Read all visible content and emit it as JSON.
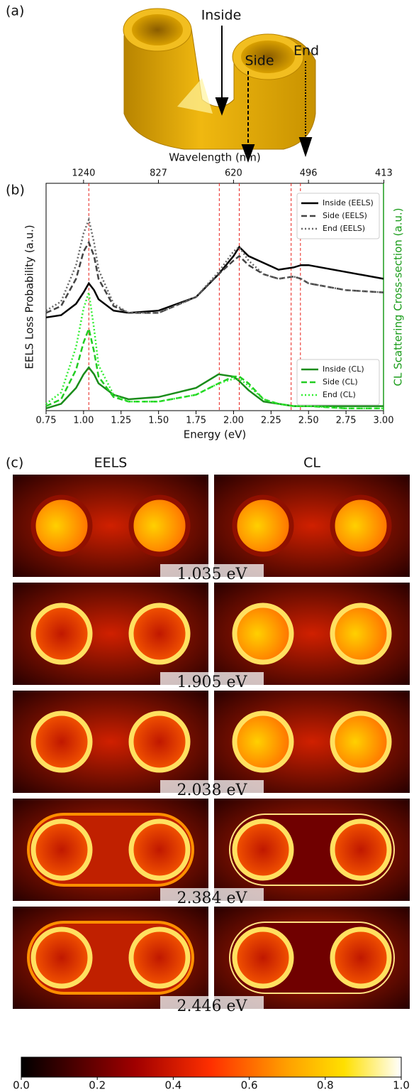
{
  "figure_a": {
    "label": "(a)",
    "annotations": [
      "Inside",
      "Side",
      "End"
    ]
  },
  "chart_data": {
    "type": "line",
    "label": "(b)",
    "xlabel": "Energy (eV)",
    "x2label": "Wavelength (nm)",
    "ylabel": "EELS Loss Probability (a.u.)",
    "y2label": "CL Scattering Cross-section (a.u.)",
    "y2color": "#1a9c1a",
    "x": [
      0.75,
      0.85,
      0.95,
      1.0,
      1.035,
      1.07,
      1.1,
      1.2,
      1.3,
      1.5,
      1.75,
      1.9,
      2.0,
      2.038,
      2.1,
      2.2,
      2.3,
      2.4,
      2.45,
      2.5,
      2.75,
      3.0
    ],
    "xlim": [
      0.75,
      3.0
    ],
    "xticks": [
      0.75,
      {
        "value": 1,
        "label": "1.00"
      },
      1.25,
      {
        "value": 1.5,
        "label": "1.50"
      },
      1.75,
      {
        "value": 2,
        "label": "2.00"
      },
      2.25,
      {
        "value": 2.5,
        "label": "2.50"
      },
      2.75,
      {
        "value": 3,
        "label": "3.00"
      }
    ],
    "x2ticks": [
      1240,
      827,
      620,
      496,
      413
    ],
    "ylim": [
      0,
      1
    ],
    "vlines": [
      1.035,
      1.905,
      2.038,
      2.384,
      2.446
    ],
    "vline_color": "#e8201a",
    "series": [
      {
        "name": "Inside (EELS)",
        "color": "#000000",
        "dash": "solid",
        "legend": "upper right",
        "values": [
          0.41,
          0.42,
          0.47,
          0.52,
          0.56,
          0.53,
          0.49,
          0.44,
          0.43,
          0.44,
          0.5,
          0.6,
          0.68,
          0.72,
          0.68,
          0.65,
          0.62,
          0.63,
          0.64,
          0.64,
          0.61,
          0.58
        ]
      },
      {
        "name": "Side (EELS)",
        "color": "#444444",
        "dash": "dashed",
        "legend": "upper right",
        "values": [
          0.43,
          0.46,
          0.58,
          0.7,
          0.74,
          0.68,
          0.58,
          0.46,
          0.43,
          0.43,
          0.5,
          0.6,
          0.66,
          0.68,
          0.64,
          0.6,
          0.58,
          0.59,
          0.58,
          0.56,
          0.53,
          0.52
        ]
      },
      {
        "name": "End (EELS)",
        "color": "#666666",
        "dash": "dotted",
        "legend": "upper right",
        "values": [
          0.44,
          0.48,
          0.64,
          0.78,
          0.84,
          0.74,
          0.62,
          0.47,
          0.43,
          0.43,
          0.5,
          0.61,
          0.7,
          0.72,
          0.66,
          0.6,
          0.58,
          0.59,
          0.58,
          0.56,
          0.53,
          0.52
        ]
      },
      {
        "name": "Inside (CL)",
        "color": "#1a8c1a",
        "dash": "solid",
        "legend": "lower right",
        "values": [
          0.01,
          0.03,
          0.1,
          0.16,
          0.19,
          0.16,
          0.12,
          0.07,
          0.05,
          0.06,
          0.1,
          0.16,
          0.15,
          0.13,
          0.09,
          0.04,
          0.03,
          0.02,
          0.02,
          0.02,
          0.02,
          0.02
        ]
      },
      {
        "name": "Side (CL)",
        "color": "#22cc22",
        "dash": "dashed",
        "legend": "lower right",
        "values": [
          0.02,
          0.05,
          0.18,
          0.3,
          0.36,
          0.26,
          0.15,
          0.06,
          0.04,
          0.04,
          0.07,
          0.12,
          0.15,
          0.15,
          0.12,
          0.05,
          0.03,
          0.02,
          0.02,
          0.02,
          0.01,
          0.01
        ]
      },
      {
        "name": "End (CL)",
        "color": "#33ee33",
        "dash": "dotted",
        "legend": "lower right",
        "values": [
          0.03,
          0.08,
          0.28,
          0.45,
          0.52,
          0.36,
          0.2,
          0.07,
          0.04,
          0.04,
          0.07,
          0.12,
          0.14,
          0.14,
          0.11,
          0.05,
          0.03,
          0.02,
          0.02,
          0.02,
          0.01,
          0.01
        ]
      }
    ]
  },
  "figure_c": {
    "label": "(c)",
    "columns": [
      "EELS",
      "CL"
    ],
    "energies": [
      "1.035 eV",
      "1.905 eV",
      "2.038 eV",
      "2.384 eV",
      "2.446 eV"
    ],
    "colorbar": {
      "lim": [
        0,
        1
      ],
      "ticks": [
        {
          "value": 0,
          "label": "0.0"
        },
        0.2,
        0.4,
        0.6,
        0.8,
        {
          "value": 1,
          "label": "1.0"
        }
      ]
    }
  }
}
